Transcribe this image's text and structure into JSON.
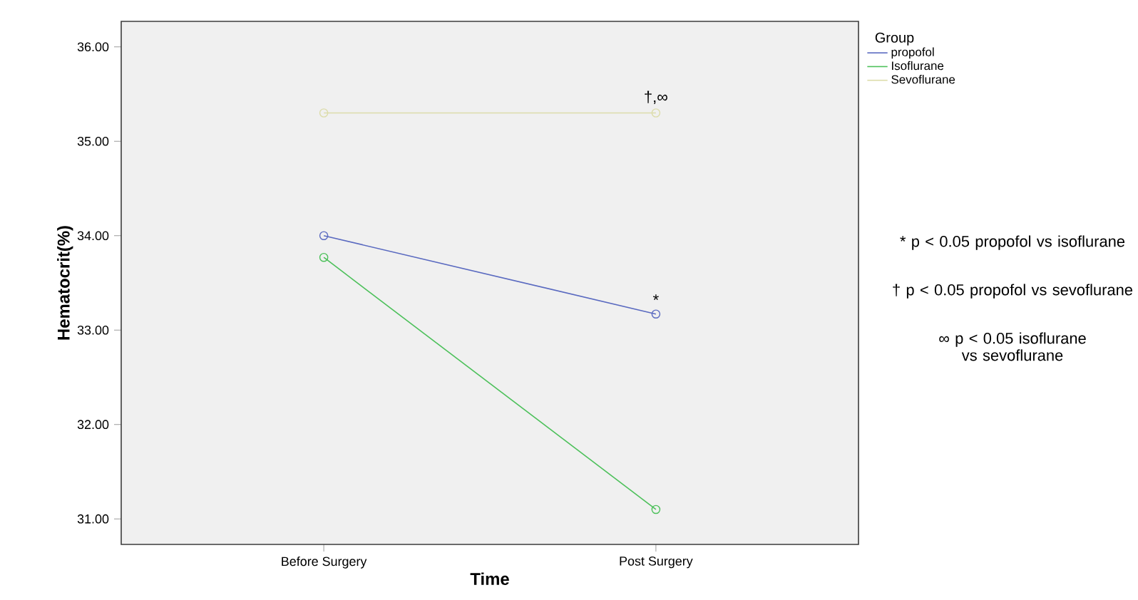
{
  "chart_data": {
    "type": "line",
    "xlabel": "Time",
    "ylabel": "Hematocrit(%)",
    "legend_title": "Group",
    "categories": [
      "Before Surgery",
      "Post Surgery"
    ],
    "series": [
      {
        "name": "propofol",
        "color": "#5a6ac0",
        "values": [
          34.0,
          33.17
        ]
      },
      {
        "name": "Isoflurane",
        "color": "#4cc05a",
        "values": [
          33.77,
          31.1
        ]
      },
      {
        "name": "Sevoflurane",
        "color": "#dcdcaa",
        "values": [
          35.3,
          35.3
        ]
      }
    ],
    "ylim": [
      30.73,
      36.27
    ],
    "yticks": [
      {
        "value": 31,
        "label": "31.00"
      },
      {
        "value": 32,
        "label": "32.00"
      },
      {
        "value": 33,
        "label": "33.00"
      },
      {
        "value": 34,
        "label": "34.00"
      },
      {
        "value": 35,
        "label": "35.00"
      },
      {
        "value": 36,
        "label": "36.00"
      }
    ],
    "marker": "circle",
    "grid": false,
    "legend": "top right",
    "annotations": [
      {
        "text": "*",
        "x": "Post Surgery",
        "y": 33.17
      },
      {
        "text": "†,∞",
        "x": "Post Surgery",
        "y": 35.3
      },
      "* p < 0.05 propofol vs isoflurane",
      "† p < 0.05 propofol vs sevoflurane",
      "∞ p < 0.05 isoflurane vs sevoflurane"
    ]
  }
}
